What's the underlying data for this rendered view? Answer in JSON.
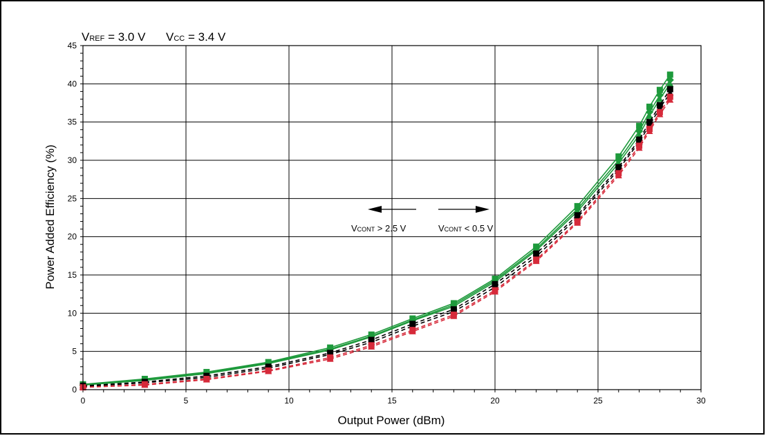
{
  "chart_data": {
    "type": "line",
    "title": "",
    "conditions": [
      {
        "main": "V",
        "sub": "REF",
        "value": " = 3.0 V"
      },
      {
        "main": "V",
        "sub": "CC",
        "value": " = 3.4 V"
      }
    ],
    "xlabel": "Output Power (dBm)",
    "ylabel": "Power Added Efficiency (%)",
    "xlim": [
      0,
      30
    ],
    "ylim": [
      0,
      45
    ],
    "xticks": [
      "0",
      "5",
      "10",
      "15",
      "20",
      "25",
      "30"
    ],
    "yticks": [
      "0",
      "5",
      "10",
      "15",
      "20",
      "25",
      "30",
      "35",
      "40",
      "45"
    ],
    "grid": true,
    "annotations": {
      "left": {
        "main": "V",
        "sub": "CONT",
        "value": " > 2.5 V"
      },
      "right": {
        "main": "V",
        "sub": "CONT",
        "value": " <  0.5 V"
      }
    },
    "series": [
      {
        "color": "#1e9a3c",
        "dash": "solid",
        "marker": "square",
        "x": [
          0,
          3,
          6,
          9,
          12,
          14,
          16,
          18,
          20,
          22,
          24,
          26,
          27,
          27.5,
          28,
          28.5
        ],
        "y": [
          0.7,
          1.4,
          2.3,
          3.6,
          5.5,
          7.2,
          9.3,
          11.3,
          14.5,
          18.7,
          24.0,
          30.5,
          34.5,
          37.0,
          39.2,
          41.2
        ]
      },
      {
        "color": "#1e9a3c",
        "dash": "solid",
        "marker": "diamond",
        "x": [
          0,
          3,
          6,
          9,
          12,
          14,
          16,
          18,
          20,
          22,
          24,
          26,
          27,
          27.5,
          28,
          28.5
        ],
        "y": [
          0.6,
          1.3,
          2.2,
          3.5,
          5.3,
          7.0,
          9.1,
          11.1,
          14.3,
          18.4,
          23.6,
          30.0,
          33.8,
          36.3,
          38.5,
          40.5
        ]
      },
      {
        "color": "#1e9a3c",
        "dash": "solid",
        "marker": "triangle",
        "x": [
          0,
          3,
          6,
          9,
          12,
          14,
          16,
          18,
          20,
          22,
          24,
          26,
          27,
          27.5,
          28,
          28.5
        ],
        "y": [
          0.6,
          1.2,
          2.1,
          3.4,
          5.2,
          6.9,
          9.0,
          10.9,
          14.1,
          18.2,
          23.3,
          29.6,
          33.3,
          35.8,
          38.0,
          40.0
        ]
      },
      {
        "color": "#000000",
        "dash": "dashed",
        "marker": "square",
        "x": [
          0,
          3,
          6,
          9,
          12,
          14,
          16,
          18,
          20,
          22,
          24,
          26,
          27,
          27.5,
          28,
          28.5
        ],
        "y": [
          0.5,
          1.0,
          1.8,
          3.0,
          4.8,
          6.5,
          8.6,
          10.5,
          13.8,
          17.8,
          22.8,
          29.1,
          32.7,
          35.0,
          37.2,
          39.3
        ]
      },
      {
        "color": "#000000",
        "dash": "dashed",
        "marker": "triangle",
        "x": [
          0,
          3,
          6,
          9,
          12,
          14,
          16,
          18,
          20,
          22,
          24,
          26,
          27,
          27.5,
          28,
          28.5
        ],
        "y": [
          0.4,
          0.9,
          1.6,
          2.8,
          4.6,
          6.2,
          8.3,
          10.2,
          13.4,
          17.4,
          22.5,
          28.8,
          32.4,
          34.6,
          36.8,
          38.8
        ]
      },
      {
        "color": "#d62a3a",
        "dash": "dashed",
        "marker": "square",
        "x": [
          0,
          3,
          6,
          9,
          12,
          14,
          16,
          18,
          20,
          22,
          24,
          26,
          27,
          27.5,
          28,
          28.5
        ],
        "y": [
          0.3,
          0.7,
          1.4,
          2.5,
          4.2,
          5.8,
          7.8,
          9.8,
          13.0,
          17.0,
          22.0,
          28.3,
          31.9,
          34.1,
          36.3,
          38.3
        ]
      },
      {
        "color": "#d62a3a",
        "dash": "dashed",
        "marker": "triangle",
        "x": [
          0,
          3,
          6,
          9,
          12,
          14,
          16,
          18,
          20,
          22,
          24,
          26,
          27,
          27.5,
          28,
          28.5
        ],
        "y": [
          0.3,
          0.6,
          1.3,
          2.4,
          4.0,
          5.6,
          7.6,
          9.6,
          12.8,
          16.8,
          21.8,
          28.0,
          31.6,
          33.8,
          36.0,
          37.9
        ]
      }
    ]
  }
}
